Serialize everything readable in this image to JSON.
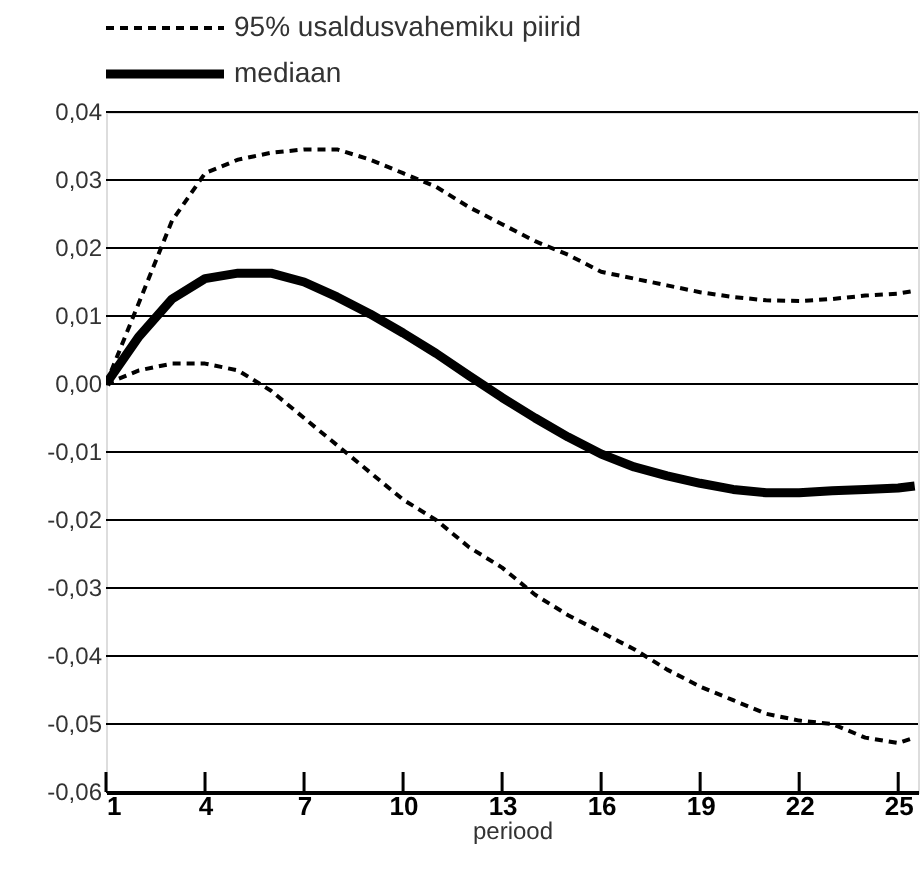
{
  "chart_data": {
    "type": "line",
    "xlabel": "periood",
    "x": [
      1,
      2,
      3,
      4,
      5,
      6,
      7,
      8,
      9,
      10,
      11,
      12,
      13,
      14,
      15,
      16,
      17,
      18,
      19,
      20,
      21,
      22,
      23,
      24,
      25,
      25.5
    ],
    "series": [
      {
        "name": "95% usaldusvahemiku piirid",
        "color": "#000000",
        "line_style": "dashed",
        "values": [
          0,
          0.012,
          0.024,
          0.031,
          0.033,
          0.034,
          0.0345,
          0.0345,
          0.033,
          0.031,
          0.029,
          0.026,
          0.0235,
          0.021,
          0.019,
          0.0165,
          0.0155,
          0.0145,
          0.0135,
          0.0128,
          0.0123,
          0.0122,
          0.0125,
          0.013,
          0.0133,
          0.0137
        ]
      },
      {
        "color": "#000000",
        "line_style": "dashed",
        "values": [
          0,
          0.002,
          0.003,
          0.003,
          0.002,
          -0.001,
          -0.005,
          -0.009,
          -0.013,
          -0.017,
          -0.02,
          -0.024,
          -0.027,
          -0.031,
          -0.034,
          -0.0365,
          -0.039,
          -0.042,
          -0.0445,
          -0.0465,
          -0.0485,
          -0.0495,
          -0.05,
          -0.052,
          -0.0528,
          -0.052
        ]
      },
      {
        "name": "mediaan",
        "color": "#000000",
        "line_style": "solid",
        "values": [
          0,
          0.007,
          0.0125,
          0.0155,
          0.0163,
          0.0163,
          0.015,
          0.0128,
          0.0103,
          0.0075,
          0.0045,
          0.0012,
          -0.002,
          -0.005,
          -0.0078,
          -0.0103,
          -0.0122,
          -0.0135,
          -0.0146,
          -0.0155,
          -0.016,
          -0.016,
          -0.0157,
          -0.0155,
          -0.0153,
          -0.015
        ]
      }
    ],
    "xlim": [
      1,
      25.6
    ],
    "xticks": [
      1,
      4,
      7,
      10,
      13,
      16,
      19,
      22,
      25
    ],
    "ylim": [
      -0.06,
      0.04
    ],
    "yticks": [
      {
        "value": -0.06,
        "label": "-0,06"
      },
      {
        "value": -0.05,
        "label": "-0,05"
      },
      {
        "value": -0.04,
        "label": "-0,04"
      },
      {
        "value": -0.03,
        "label": "-0,03"
      },
      {
        "value": -0.02,
        "label": "-0,02"
      },
      {
        "value": -0.01,
        "label": "-0,01"
      },
      {
        "value": 0,
        "label": "0,00"
      },
      {
        "value": 0.01,
        "label": "0,01"
      },
      {
        "value": 0.02,
        "label": "0,02"
      },
      {
        "value": 0.03,
        "label": "0,03"
      },
      {
        "value": 0.04,
        "label": "0,04"
      }
    ],
    "grid": "y",
    "legend": "top left"
  }
}
